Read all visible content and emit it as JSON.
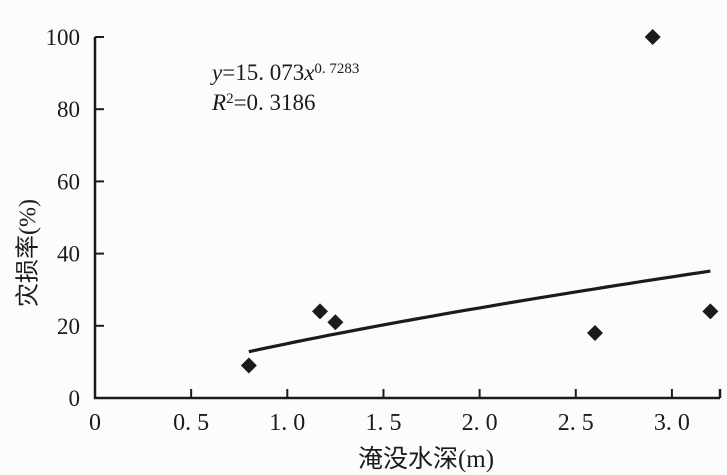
{
  "figure": {
    "background": "#fcfcfa",
    "ink_color": "#1b1b1b"
  },
  "chart_data": {
    "type": "scatter",
    "title": "",
    "xlabel": "淹没水深(m)",
    "ylabel": "灾损率(%)",
    "xlim": [
      0,
      3.25
    ],
    "ylim": [
      0,
      100
    ],
    "grid": false,
    "legend": "none",
    "marker": "filled-diamond",
    "x_ticks": {
      "values": [
        0,
        0.5,
        1.0,
        1.5,
        2.0,
        2.5,
        3.0
      ],
      "labels": [
        "0",
        "0. 5",
        "1. 0",
        "1. 5",
        "2. 0",
        "2. 5",
        "3. 0"
      ]
    },
    "x_axis_end_tick": 3.25,
    "y_ticks": {
      "values": [
        0,
        20,
        40,
        60,
        80,
        100
      ],
      "labels": [
        "0",
        "20",
        "40",
        "60",
        "80",
        "100"
      ]
    },
    "points": [
      [
        0.8,
        9
      ],
      [
        1.17,
        24
      ],
      [
        1.25,
        21
      ],
      [
        2.6,
        18
      ],
      [
        2.9,
        100
      ],
      [
        3.2,
        24
      ]
    ],
    "trendline": {
      "type": "power",
      "a": 15.073,
      "b": 0.7283,
      "x_start": 0.8,
      "x_end": 3.2
    },
    "annotation": {
      "y_var": "y",
      "coef": "=15. 073",
      "x_var": "x",
      "exponent": "0. 7283",
      "r_var": "R",
      "r_sup": "2",
      "r_value": "=0. 3186"
    }
  }
}
